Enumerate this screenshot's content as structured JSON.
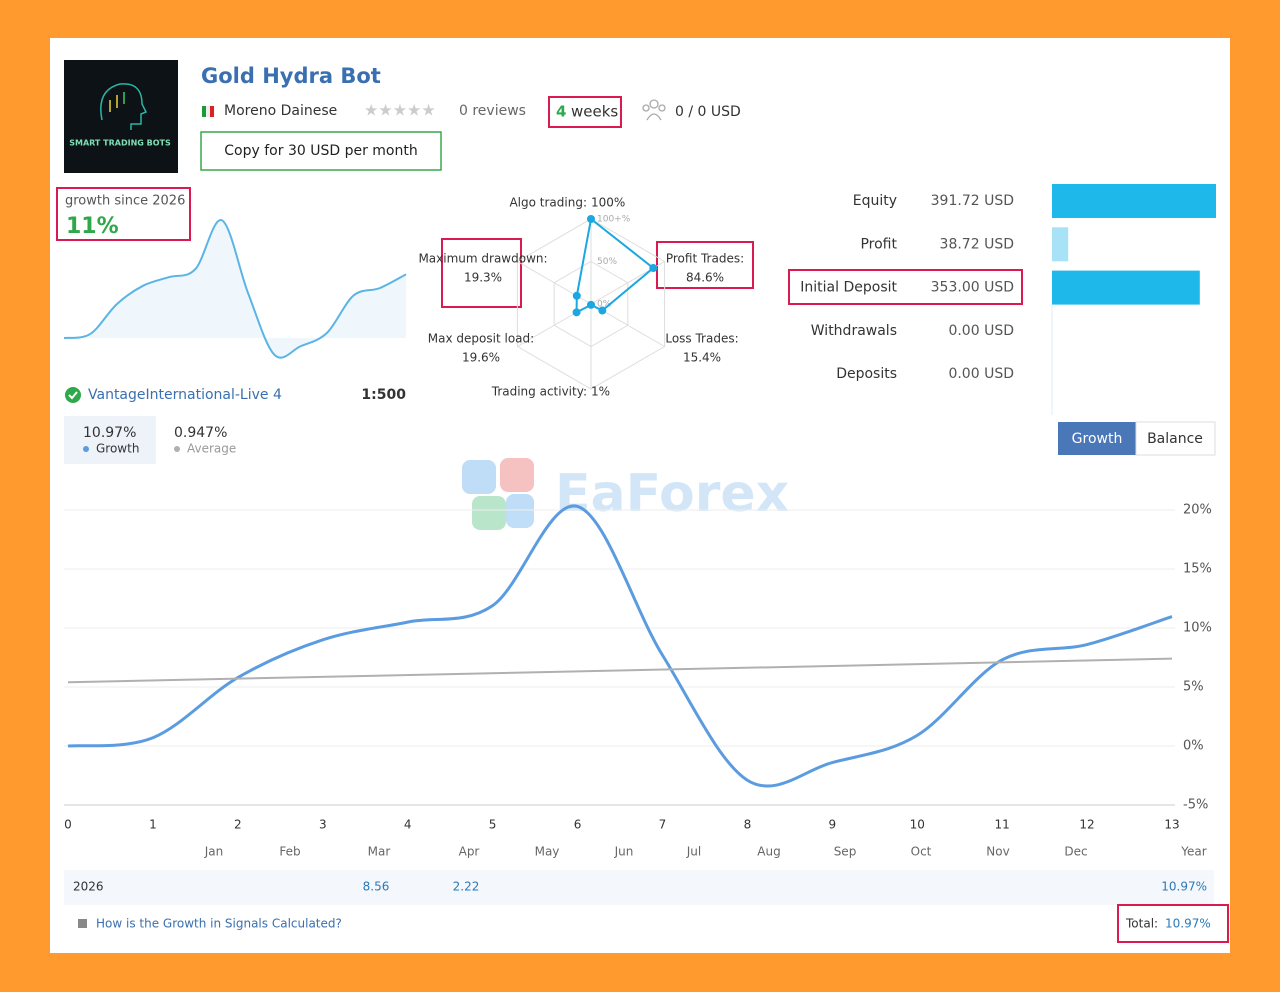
{
  "header": {
    "logo_text": "SMART TRADING BOTS",
    "title": "Gold Hydra Bot",
    "author": "Moreno Dainese",
    "reviews": "0 reviews",
    "weeks_num": "4",
    "weeks_label": "weeks",
    "subscribers": "0 / 0 USD",
    "copy_button": "Copy for 30 USD per month"
  },
  "growth_box": {
    "label": "growth since 2026",
    "value": "11%"
  },
  "account": {
    "broker": "VantageInternational-Live 4",
    "leverage": "1:500"
  },
  "watermark": "EaForex",
  "chart_data": [
    {
      "type": "radar",
      "categories": [
        "Algo trading:",
        "Profit Trades:",
        "Loss Trades:",
        "Trading activity:",
        "Max deposit load:",
        "Maximum drawdown:"
      ],
      "values": [
        100,
        84.6,
        15.4,
        1,
        19.6,
        19.3
      ],
      "value_labels": [
        "100%",
        "84.6%",
        "15.4%",
        "1%",
        "19.6%",
        "19.3%"
      ],
      "rlim": [
        0,
        100
      ],
      "rticks": [
        {
          "value": 100,
          "label": "100+%"
        },
        {
          "value": 50,
          "label": "50%"
        },
        {
          "value": 0,
          "label": "0%"
        }
      ],
      "color": "#1ba8e0"
    },
    {
      "type": "hbar",
      "categories": [
        "Equity",
        "Profit",
        "Initial Deposit",
        "Withdrawals",
        "Deposits"
      ],
      "values": [
        391.72,
        38.72,
        353.0,
        0,
        0
      ],
      "value_labels": [
        "391.72 USD",
        "38.72 USD",
        "353.00 USD",
        "0.00 USD",
        "0.00 USD"
      ],
      "colors": [
        "#1fb8ea",
        "#a8e2f7",
        "#1fb8ea",
        "#1fb8ea",
        "#1fb8ea"
      ]
    },
    {
      "type": "line",
      "x": [
        0,
        1,
        2,
        3,
        4,
        5,
        6,
        7,
        8,
        9,
        10,
        11,
        12,
        13
      ],
      "series": [
        {
          "name": "Growth",
          "color": "#5b9be0",
          "values": [
            0,
            0.7,
            5.8,
            9,
            10.5,
            11.9,
            20.3,
            7.7,
            -2.9,
            -1.4,
            0.9,
            7.3,
            8.6,
            10.97
          ]
        },
        {
          "name": "Average",
          "color": "#b0b0b0",
          "x": [
            0,
            13
          ],
          "values": [
            5.4,
            7.4
          ]
        }
      ],
      "legend_values": [
        "10.97%",
        "0.947%"
      ],
      "tabs": [
        "Growth",
        "Balance"
      ],
      "xlim": [
        0,
        13
      ],
      "xticks": [
        0,
        1,
        2,
        3,
        4,
        5,
        6,
        7,
        8,
        9,
        10,
        11,
        12,
        13
      ],
      "ylim": [
        -5,
        22
      ],
      "yticks": [
        {
          "value": -5,
          "label": "-5%"
        },
        {
          "value": 0,
          "label": "0%"
        },
        {
          "value": 5,
          "label": "5%"
        },
        {
          "value": 10,
          "label": "10%"
        },
        {
          "value": 15,
          "label": "15%"
        },
        {
          "value": 20,
          "label": "20%"
        }
      ],
      "grid": true,
      "month_labels": [
        "Jan",
        "Feb",
        "Mar",
        "Apr",
        "May",
        "Jun",
        "Jul",
        "Aug",
        "Sep",
        "Oct",
        "Nov",
        "Dec",
        "Year"
      ]
    }
  ],
  "yearly_table": {
    "year": "2026",
    "months": [
      null,
      null,
      8.56,
      2.22,
      null,
      null,
      null,
      null,
      null,
      null,
      null,
      null
    ],
    "total": "10.97%"
  },
  "footer": {
    "link": "How is the Growth in Signals Calculated?",
    "total_label": "Total:",
    "total_value": "10.97%"
  }
}
